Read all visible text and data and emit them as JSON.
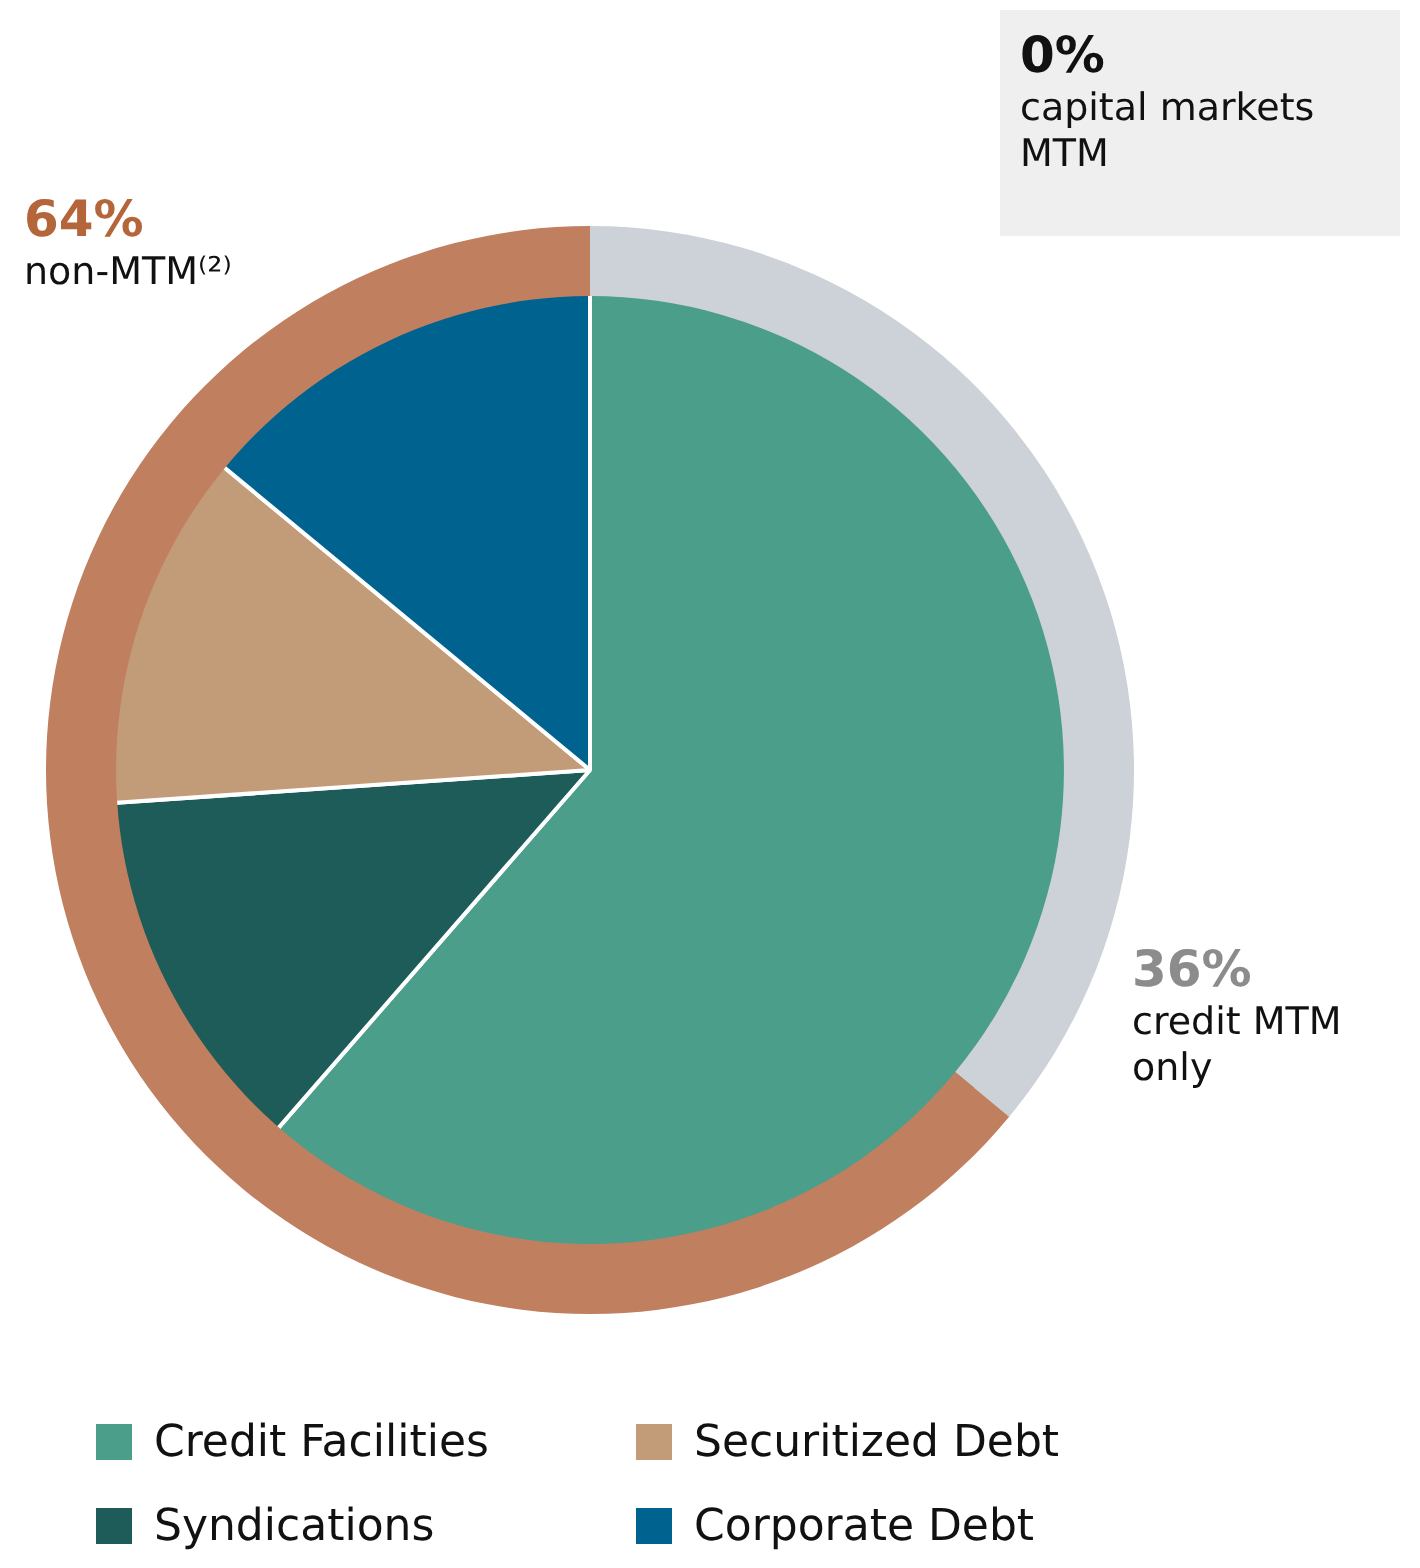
{
  "chart_data": [
    {
      "type": "pie",
      "categories": [
        "Credit Facilities",
        "Syndications",
        "Securitized Debt",
        "Corporate Debt"
      ],
      "values": [
        61.4,
        12.5,
        12.1,
        14.0
      ],
      "colors": [
        "#4a9e8a",
        "#1d5c58",
        "#c29c78",
        "#00628f"
      ],
      "legend": "bottom"
    },
    {
      "type": "donut",
      "categories": [
        "credit MTM only",
        "non-MTM⁽²⁾",
        "capital markets MTM"
      ],
      "values": [
        36,
        64,
        0
      ],
      "colors": [
        "#cdd1d8",
        "#c07f5e",
        "#cdd1d8"
      ],
      "value_labels": [
        "36%",
        "64%",
        "0%"
      ]
    }
  ]
}
